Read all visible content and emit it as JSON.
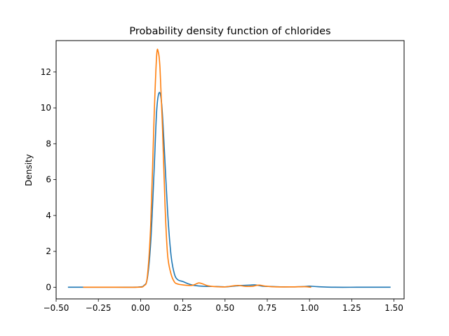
{
  "chart_data": {
    "type": "line",
    "title": "Probability density function of chlorides",
    "xlabel": "",
    "ylabel": "Density",
    "xlim": [
      -0.5,
      1.56
    ],
    "ylim": [
      -0.65,
      13.75
    ],
    "x_ticks": [
      -0.5,
      -0.25,
      0.0,
      0.25,
      0.5,
      0.75,
      1.0,
      1.25,
      1.5
    ],
    "x_tick_labels": [
      "−0.50",
      "−0.25",
      "0.00",
      "0.25",
      "0.50",
      "0.75",
      "1.00",
      "1.25",
      "1.50"
    ],
    "y_ticks": [
      0,
      2,
      4,
      6,
      8,
      10,
      12
    ],
    "y_tick_labels": [
      "0",
      "2",
      "4",
      "6",
      "8",
      "10",
      "12"
    ],
    "grid": false,
    "legend": "none",
    "colors": [
      "#1f77b4",
      "#ff7f0e"
    ],
    "series": [
      {
        "points": [
          [
            -0.43,
            0.0
          ],
          [
            -0.2,
            0.0
          ],
          [
            -0.05,
            0.0
          ],
          [
            0.0,
            0.02
          ],
          [
            0.02,
            0.1
          ],
          [
            0.04,
            0.5
          ],
          [
            0.06,
            2.5
          ],
          [
            0.08,
            6.5
          ],
          [
            0.095,
            9.8
          ],
          [
            0.11,
            10.85
          ],
          [
            0.125,
            10.2
          ],
          [
            0.14,
            7.8
          ],
          [
            0.16,
            4.2
          ],
          [
            0.18,
            1.8
          ],
          [
            0.2,
            0.75
          ],
          [
            0.22,
            0.42
          ],
          [
            0.25,
            0.32
          ],
          [
            0.28,
            0.2
          ],
          [
            0.32,
            0.1
          ],
          [
            0.38,
            0.05
          ],
          [
            0.45,
            0.04
          ],
          [
            0.5,
            0.02
          ],
          [
            0.55,
            0.06
          ],
          [
            0.6,
            0.1
          ],
          [
            0.65,
            0.12
          ],
          [
            0.68,
            0.13
          ],
          [
            0.72,
            0.06
          ],
          [
            0.78,
            0.04
          ],
          [
            0.85,
            0.02
          ],
          [
            0.95,
            0.03
          ],
          [
            1.0,
            0.06
          ],
          [
            1.05,
            0.03
          ],
          [
            1.15,
            0.0
          ],
          [
            1.3,
            0.0
          ],
          [
            1.48,
            0.0
          ]
        ]
      },
      {
        "points": [
          [
            -0.34,
            0.0
          ],
          [
            -0.15,
            0.0
          ],
          [
            -0.02,
            0.0
          ],
          [
            0.02,
            0.08
          ],
          [
            0.04,
            0.6
          ],
          [
            0.06,
            3.5
          ],
          [
            0.08,
            9.5
          ],
          [
            0.095,
            12.9
          ],
          [
            0.105,
            13.1
          ],
          [
            0.115,
            12.2
          ],
          [
            0.13,
            8.8
          ],
          [
            0.145,
            4.5
          ],
          [
            0.16,
            1.8
          ],
          [
            0.18,
            0.75
          ],
          [
            0.2,
            0.3
          ],
          [
            0.22,
            0.18
          ],
          [
            0.26,
            0.12
          ],
          [
            0.3,
            0.1
          ],
          [
            0.32,
            0.15
          ],
          [
            0.345,
            0.24
          ],
          [
            0.37,
            0.18
          ],
          [
            0.4,
            0.08
          ],
          [
            0.45,
            0.03
          ],
          [
            0.5,
            0.02
          ],
          [
            0.55,
            0.08
          ],
          [
            0.58,
            0.1
          ],
          [
            0.62,
            0.05
          ],
          [
            0.66,
            0.05
          ],
          [
            0.7,
            0.12
          ],
          [
            0.74,
            0.06
          ],
          [
            0.8,
            0.02
          ],
          [
            0.9,
            0.02
          ],
          [
            0.97,
            0.03
          ],
          [
            1.01,
            0.0
          ]
        ]
      }
    ]
  }
}
